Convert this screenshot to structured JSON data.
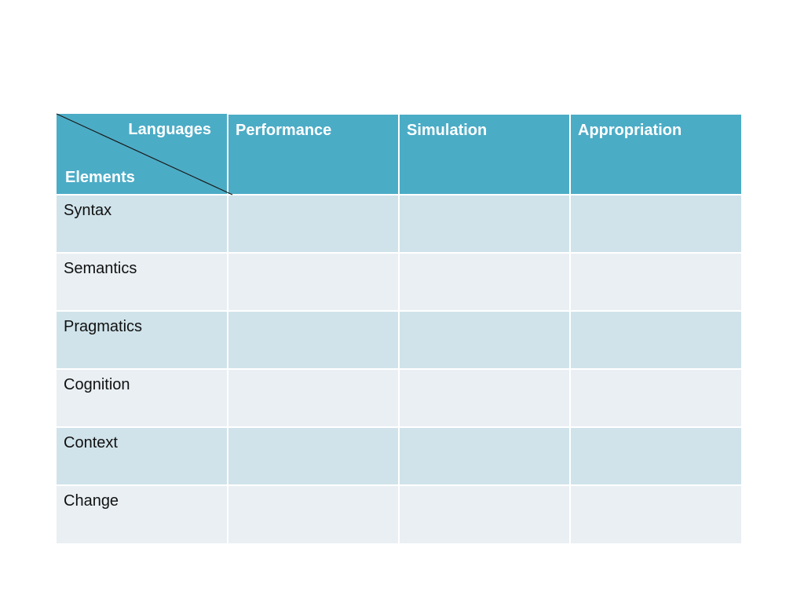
{
  "table": {
    "corner": {
      "top_label": "Languages",
      "bottom_label": "Elements"
    },
    "columns": [
      "Performance",
      "Simulation",
      "Appropriation"
    ],
    "rows": [
      {
        "label": "Syntax",
        "cells": [
          "",
          "",
          ""
        ]
      },
      {
        "label": "Semantics",
        "cells": [
          "",
          "",
          ""
        ]
      },
      {
        "label": "Pragmatics",
        "cells": [
          "",
          "",
          ""
        ]
      },
      {
        "label": "Cognition",
        "cells": [
          "",
          "",
          ""
        ]
      },
      {
        "label": "Context",
        "cells": [
          "",
          "",
          ""
        ]
      },
      {
        "label": "Change",
        "cells": [
          "",
          "",
          ""
        ]
      }
    ]
  },
  "colors": {
    "header_bg": "#4bacc6",
    "row_band_dark": "#d0e3ea",
    "row_band_light": "#e9eff3",
    "header_text": "#ffffff"
  }
}
